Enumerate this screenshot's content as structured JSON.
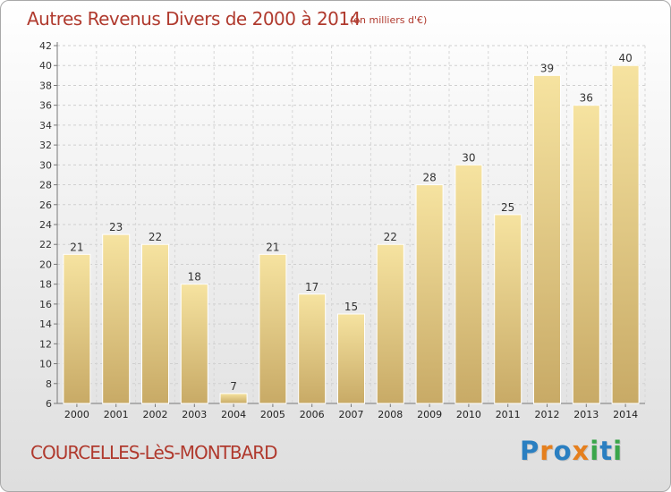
{
  "chart_data": {
    "type": "bar",
    "title": "Autres Revenus Divers de 2000 à 2014",
    "subtitle": "(en milliers d'€)",
    "categories": [
      "2000",
      "2001",
      "2002",
      "2003",
      "2004",
      "2005",
      "2006",
      "2007",
      "2008",
      "2009",
      "2010",
      "2011",
      "2012",
      "2013",
      "2014"
    ],
    "values": [
      21,
      23,
      22,
      18,
      7,
      21,
      17,
      15,
      22,
      28,
      30,
      25,
      39,
      36,
      40
    ],
    "ylim": [
      6,
      42
    ],
    "yticks": [
      6,
      8,
      10,
      12,
      14,
      16,
      18,
      20,
      22,
      24,
      26,
      28,
      30,
      32,
      34,
      36,
      38,
      40,
      42
    ],
    "grid": true,
    "colors": {
      "bar_light": "#f6e3a0",
      "bar_dark": "#c8aa66",
      "title": "#b03a2e"
    }
  },
  "footer": {
    "commune": "COURCELLES-LèS-MONTBARD",
    "brand": "Proxiti",
    "brand_colors": [
      "#2a7fc1",
      "#e57f1d",
      "#2a7fc1",
      "#e57f1d",
      "#3aa64a",
      "#2a7fc1",
      "#3aa64a"
    ]
  }
}
